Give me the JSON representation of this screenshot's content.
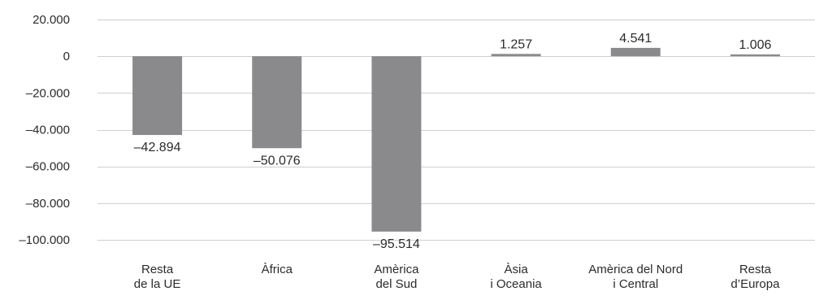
{
  "chart_data": {
    "type": "bar",
    "title": "",
    "xlabel": "",
    "ylabel": "",
    "categories": [
      [
        "Resta",
        "de la UE"
      ],
      [
        "Àfrica"
      ],
      [
        "Amèrica",
        "del Sud"
      ],
      [
        "Àsia",
        "i Oceania"
      ],
      [
        "Amèrica del Nord",
        "i Central"
      ],
      [
        "Resta",
        "d’Europa"
      ]
    ],
    "values": [
      -42894,
      -50076,
      -95514,
      1257,
      4541,
      1006
    ],
    "value_labels": [
      "–42.894",
      "–50.076",
      "–95.514",
      "1.257",
      "4.541",
      "1.006"
    ],
    "ylim": [
      -100000,
      20000
    ],
    "yticks": [
      20000,
      0,
      -20000,
      -40000,
      -60000,
      -80000,
      -100000
    ],
    "ytick_labels": [
      "20.000",
      "0",
      "–20.000",
      "–40.000",
      "–60.000",
      "–80.000",
      "–100.000"
    ],
    "grid": true,
    "legend": "none",
    "colors": {
      "bar": "#8a8a8c",
      "grid": "#cfcfcf",
      "text": "#2b2b2b"
    }
  }
}
